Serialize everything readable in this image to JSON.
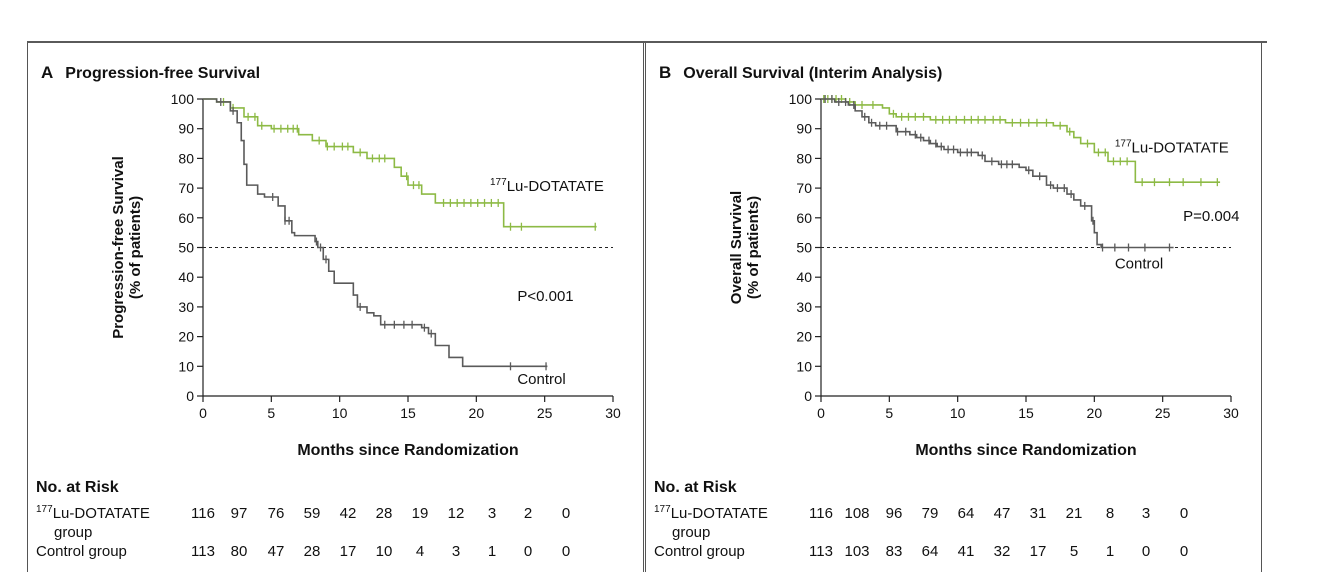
{
  "chart_data": [
    {
      "type": "line",
      "panel_letter": "A",
      "title": "Progression-free Survival",
      "ylabel_lines": [
        "Progression-free Survival",
        "(% of patients)"
      ],
      "xlabel": "Months since Randomization",
      "xlim": [
        0,
        30
      ],
      "ylim": [
        0,
        100
      ],
      "xticks": [
        0,
        5,
        10,
        15,
        20,
        25,
        30
      ],
      "yticks": [
        0,
        10,
        20,
        30,
        40,
        50,
        60,
        70,
        80,
        90,
        100
      ],
      "reference_line": {
        "y": 50,
        "style": "dashed"
      },
      "p_value": "P<0.001",
      "series": [
        {
          "name_sup": "177",
          "name_main": "Lu-DOTATATE",
          "color": "#8dba45",
          "steps": [
            [
              0,
              100
            ],
            [
              1,
              99
            ],
            [
              2,
              97
            ],
            [
              3,
              94
            ],
            [
              4,
              91
            ],
            [
              5,
              90
            ],
            [
              7,
              88
            ],
            [
              8,
              86
            ],
            [
              9,
              84
            ],
            [
              11,
              82
            ],
            [
              12,
              80
            ],
            [
              14,
              77
            ],
            [
              14.5,
              74
            ],
            [
              15,
              71
            ],
            [
              16,
              68
            ],
            [
              17,
              65
            ],
            [
              22,
              57
            ],
            [
              28.8,
              57
            ]
          ],
          "censor_x": [
            1.5,
            2.2,
            3.3,
            3.8,
            4.3,
            5.2,
            5.7,
            6.2,
            6.6,
            6.9,
            8.5,
            9.1,
            9.6,
            10.2,
            10.6,
            11.5,
            12.4,
            12.9,
            13.3,
            14.9,
            15.4,
            15.8,
            17.6,
            18.1,
            18.6,
            19.1,
            19.6,
            20.1,
            20.6,
            21.1,
            21.6,
            22.5,
            23.3,
            28.7
          ]
        },
        {
          "name": "Control",
          "color": "#5a5a5a",
          "steps": [
            [
              0,
              100
            ],
            [
              1,
              99
            ],
            [
              2,
              96
            ],
            [
              2.5,
              92
            ],
            [
              2.8,
              86
            ],
            [
              3,
              78
            ],
            [
              3.2,
              71
            ],
            [
              4,
              68
            ],
            [
              4.5,
              67
            ],
            [
              5.5,
              64
            ],
            [
              6,
              59
            ],
            [
              6.5,
              55
            ],
            [
              6.7,
              54
            ],
            [
              8.2,
              52
            ],
            [
              8.4,
              50
            ],
            [
              8.8,
              46
            ],
            [
              9.2,
              42
            ],
            [
              9.6,
              38
            ],
            [
              11,
              34
            ],
            [
              11.3,
              30
            ],
            [
              12,
              28
            ],
            [
              12.5,
              27
            ],
            [
              13,
              24
            ],
            [
              16,
              23
            ],
            [
              16.5,
              21
            ],
            [
              17,
              17
            ],
            [
              18,
              13
            ],
            [
              19,
              10
            ],
            [
              25.2,
              10
            ]
          ],
          "censor_x": [
            1.3,
            2.2,
            5.1,
            6.0,
            6.3,
            8.3,
            8.6,
            9.0,
            11.5,
            13.3,
            14.0,
            14.7,
            15.3,
            16.2,
            16.7,
            22.5,
            25.1
          ]
        }
      ],
      "annotations": {
        "series_a_label_xy": [
          21,
          69
        ],
        "series_b_label_xy": [
          23,
          4
        ],
        "p_xy": [
          23,
          32
        ]
      },
      "risk_table": {
        "header": "No. at Risk",
        "rows": [
          {
            "label_sup": "177",
            "label_main": "Lu-DOTATATE",
            "label_line2": "group",
            "values": [
              "116",
              "97",
              "76",
              "59",
              "42",
              "28",
              "19",
              "12",
              "3",
              "2",
              "0"
            ]
          },
          {
            "label_main": "Control group",
            "values": [
              "113",
              "80",
              "47",
              "28",
              "17",
              "10",
              "4",
              "3",
              "1",
              "0",
              "0"
            ]
          }
        ]
      }
    },
    {
      "type": "line",
      "panel_letter": "B",
      "title": "Overall Survival (Interim Analysis)",
      "ylabel_lines": [
        "Overall Survival",
        "(% of patients)"
      ],
      "xlabel": "Months since Randomization",
      "xlim": [
        0,
        30
      ],
      "ylim": [
        0,
        100
      ],
      "xticks": [
        0,
        5,
        10,
        15,
        20,
        25,
        30
      ],
      "yticks": [
        0,
        10,
        20,
        30,
        40,
        50,
        60,
        70,
        80,
        90,
        100
      ],
      "reference_line": {
        "y": 50,
        "style": "dashed"
      },
      "p_value": "P=0.004",
      "series": [
        {
          "name_sup": "177",
          "name_main": "Lu-DOTATATE",
          "color": "#8dba45",
          "steps": [
            [
              0,
              100
            ],
            [
              1.8,
              99
            ],
            [
              2.5,
              98
            ],
            [
              4.5,
              97
            ],
            [
              5,
              95
            ],
            [
              5.5,
              94
            ],
            [
              8,
              93
            ],
            [
              13.5,
              92
            ],
            [
              17,
              91
            ],
            [
              18,
              89
            ],
            [
              18.5,
              87
            ],
            [
              19,
              85
            ],
            [
              20,
              82
            ],
            [
              21,
              79
            ],
            [
              23,
              72
            ],
            [
              29.2,
              72
            ]
          ],
          "censor_x": [
            0.2,
            0.5,
            0.8,
            1.1,
            1.5,
            2.1,
            3.0,
            3.8,
            5.3,
            5.9,
            6.4,
            6.9,
            7.5,
            8.4,
            8.9,
            9.4,
            9.9,
            10.5,
            11.0,
            11.5,
            12.0,
            12.6,
            13.1,
            14.0,
            14.6,
            15.2,
            15.8,
            16.5,
            17.5,
            18.2,
            19.5,
            20.3,
            20.8,
            21.4,
            21.9,
            22.4,
            23.5,
            24.4,
            25.5,
            26.5,
            27.8,
            29.0
          ]
        },
        {
          "name": "Control",
          "color": "#5a5a5a",
          "steps": [
            [
              0,
              100
            ],
            [
              1,
              99
            ],
            [
              2,
              98
            ],
            [
              2.5,
              96
            ],
            [
              3,
              94
            ],
            [
              3.5,
              92
            ],
            [
              4,
              91
            ],
            [
              5.5,
              89
            ],
            [
              6.5,
              88
            ],
            [
              7,
              87
            ],
            [
              7.5,
              86
            ],
            [
              8,
              85
            ],
            [
              8.5,
              84
            ],
            [
              9,
              83
            ],
            [
              10,
              82
            ],
            [
              11.5,
              81
            ],
            [
              12,
              79
            ],
            [
              13,
              78
            ],
            [
              14.5,
              77
            ],
            [
              15,
              76
            ],
            [
              15.5,
              74
            ],
            [
              16.5,
              71
            ],
            [
              17,
              70
            ],
            [
              18,
              68
            ],
            [
              18.5,
              66
            ],
            [
              19,
              64
            ],
            [
              19.8,
              59
            ],
            [
              20,
              55
            ],
            [
              20.2,
              51
            ],
            [
              20.5,
              50
            ],
            [
              25.8,
              50
            ]
          ],
          "censor_x": [
            0.3,
            0.8,
            1.3,
            1.8,
            2.4,
            3.2,
            3.7,
            4.3,
            4.8,
            5.6,
            6.2,
            6.9,
            7.3,
            7.9,
            8.4,
            8.8,
            9.3,
            9.7,
            10.2,
            10.7,
            11.0,
            11.8,
            12.5,
            13.2,
            13.6,
            14.0,
            15.2,
            16.0,
            16.8,
            17.3,
            17.8,
            18.3,
            19.3,
            19.9,
            20.6,
            21.5,
            22.5,
            23.7,
            25.5
          ]
        }
      ],
      "annotations": {
        "series_a_label_xy": [
          21.5,
          82
        ],
        "series_b_label_xy": [
          21.5,
          43
        ],
        "p_xy": [
          26.5,
          59
        ]
      },
      "risk_table": {
        "header": "No. at Risk",
        "rows": [
          {
            "label_sup": "177",
            "label_main": "Lu-DOTATATE",
            "label_line2": "group",
            "values": [
              "116",
              "108",
              "96",
              "79",
              "64",
              "47",
              "31",
              "21",
              "8",
              "3",
              "0"
            ]
          },
          {
            "label_main": "Control group",
            "values": [
              "113",
              "103",
              "83",
              "64",
              "41",
              "32",
              "17",
              "5",
              "1",
              "0",
              "0"
            ]
          }
        ]
      }
    }
  ]
}
